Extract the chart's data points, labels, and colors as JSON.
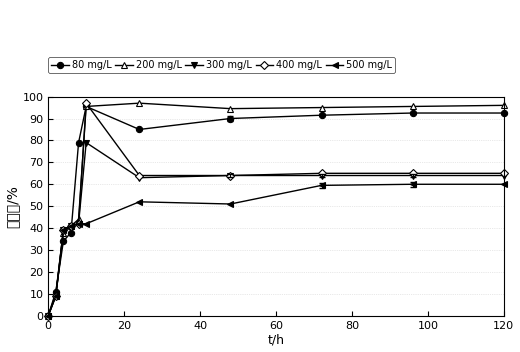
{
  "series": [
    {
      "label": "80 mg/L",
      "marker": "o",
      "marker_hollow": false,
      "x": [
        0,
        2,
        4,
        6,
        8,
        10,
        24,
        48,
        72,
        96,
        120
      ],
      "y": [
        0,
        11,
        34,
        38,
        79,
        95.5,
        85,
        90,
        91.5,
        92.5,
        92.5
      ]
    },
    {
      "label": "200 mg/L",
      "marker": "^",
      "marker_hollow": true,
      "x": [
        0,
        2,
        4,
        6,
        8,
        10,
        24,
        48,
        72,
        96,
        120
      ],
      "y": [
        0,
        9,
        38,
        41,
        44,
        95.5,
        97,
        94.5,
        95,
        95.5,
        96
      ]
    },
    {
      "label": "300 mg/L",
      "marker": "v",
      "marker_hollow": false,
      "x": [
        0,
        2,
        4,
        6,
        8,
        10,
        24,
        48,
        72,
        96,
        120
      ],
      "y": [
        0,
        10,
        39,
        41,
        42,
        79,
        63,
        64,
        64,
        64,
        64
      ]
    },
    {
      "label": "400 mg/L",
      "marker": "D",
      "marker_hollow": true,
      "x": [
        0,
        2,
        4,
        6,
        8,
        10,
        24,
        48,
        72,
        96,
        120
      ],
      "y": [
        0,
        9,
        39,
        41,
        42,
        97,
        64,
        64,
        65,
        65,
        65
      ]
    },
    {
      "label": "500 mg/L",
      "marker": "<",
      "marker_hollow": false,
      "x": [
        0,
        2,
        4,
        6,
        8,
        10,
        24,
        48,
        72,
        96,
        120
      ],
      "y": [
        0,
        9,
        39,
        41,
        42,
        42,
        52,
        51,
        59.5,
        60,
        60
      ]
    }
  ],
  "xlabel": "t/h",
  "ylabel": "脱色率/%",
  "xlim": [
    0,
    120
  ],
  "ylim": [
    0,
    100
  ],
  "xticks": [
    0,
    20,
    40,
    60,
    80,
    100,
    120
  ],
  "yticks": [
    0,
    10,
    20,
    30,
    40,
    50,
    60,
    70,
    80,
    90,
    100
  ],
  "linewidth": 1.0,
  "markersize": 4.5,
  "background_color": "#ffffff"
}
